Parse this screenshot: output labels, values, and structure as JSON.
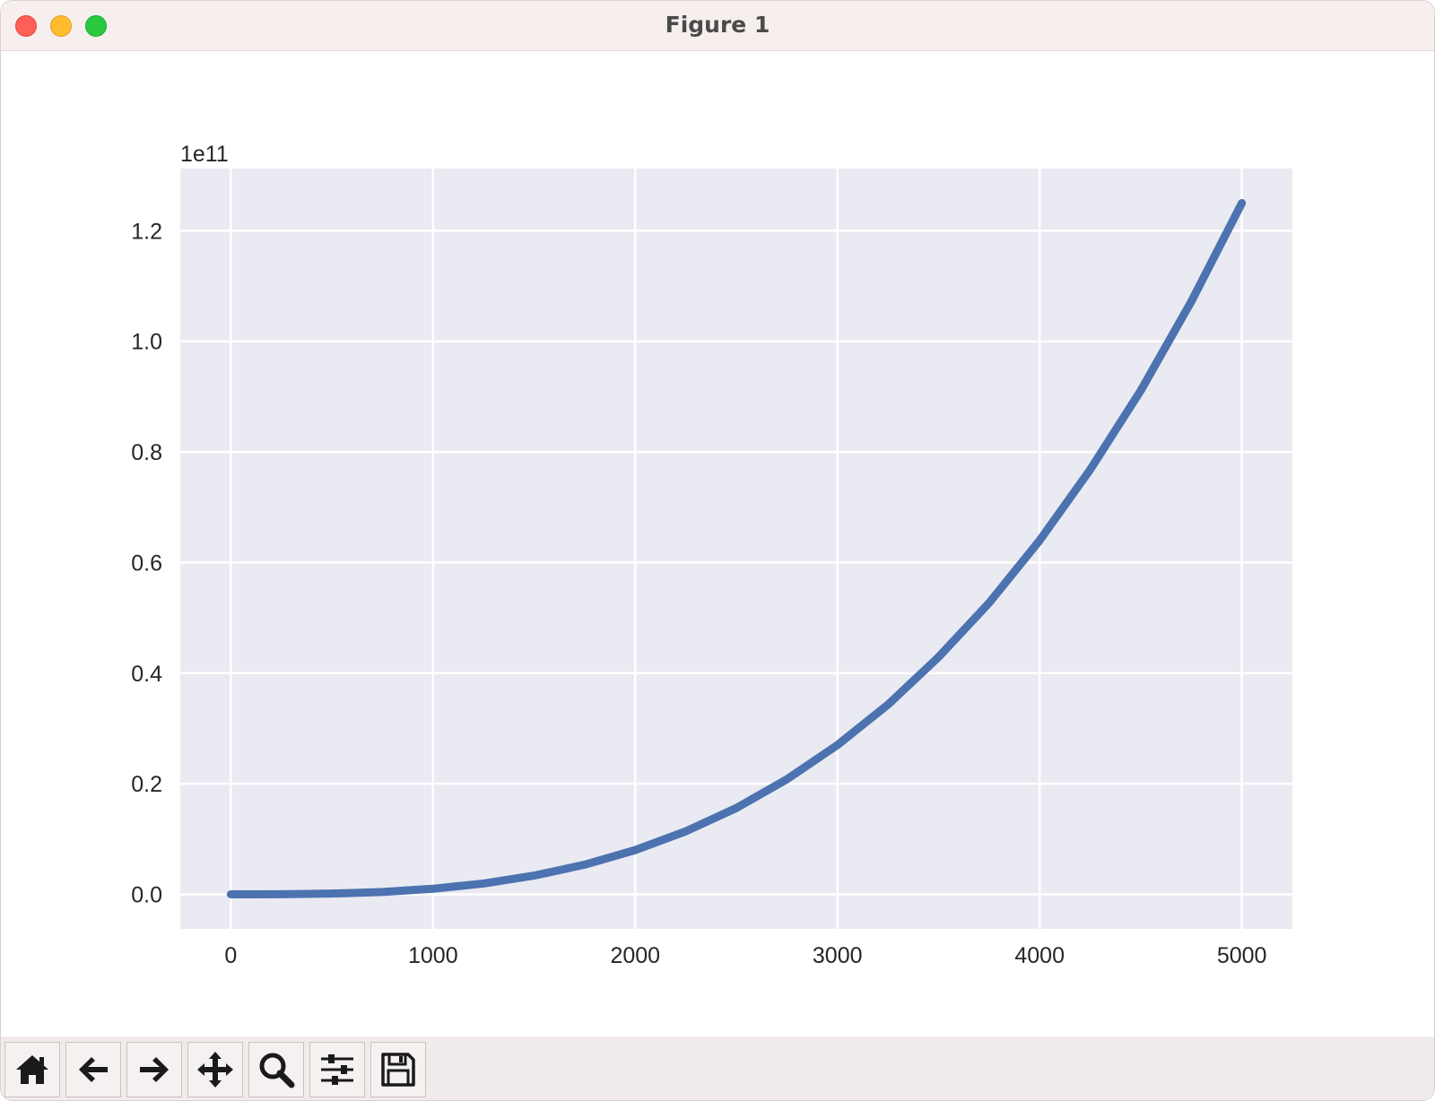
{
  "window": {
    "title": "Figure 1"
  },
  "toolbar": {
    "buttons": [
      {
        "name": "home-button",
        "icon": "home-icon"
      },
      {
        "name": "back-button",
        "icon": "arrow-left-icon"
      },
      {
        "name": "forward-button",
        "icon": "arrow-right-icon"
      },
      {
        "name": "pan-button",
        "icon": "move-icon"
      },
      {
        "name": "zoom-button",
        "icon": "magnifier-icon"
      },
      {
        "name": "configure-subplots-button",
        "icon": "sliders-icon"
      },
      {
        "name": "save-button",
        "icon": "floppy-disk-icon"
      }
    ]
  },
  "chart_data": {
    "type": "line",
    "title": "",
    "xlabel": "",
    "ylabel": "",
    "y_offset_label": "1e11",
    "y_scale": 100000000000,
    "xlim": [
      -250,
      5250
    ],
    "ylim": [
      -0.0625,
      1.3125
    ],
    "x_ticks": [
      0,
      1000,
      2000,
      3000,
      4000,
      5000
    ],
    "x_tick_labels": [
      "0",
      "1000",
      "2000",
      "3000",
      "4000",
      "5000"
    ],
    "y_ticks": [
      0.0,
      0.2,
      0.4,
      0.6,
      0.8,
      1.0,
      1.2
    ],
    "y_tick_labels": [
      "0.0",
      "0.2",
      "0.4",
      "0.6",
      "0.8",
      "1.0",
      "1.2"
    ],
    "grid": true,
    "colors": {
      "line": "#4c72b0",
      "axes_background": "#eaeaf2",
      "grid": "#ffffff",
      "tick_label": "#262626"
    },
    "series": [
      {
        "x": [
          0,
          250,
          500,
          750,
          1000,
          1250,
          1500,
          1750,
          2000,
          2250,
          2500,
          2750,
          3000,
          3250,
          3500,
          3750,
          4000,
          4250,
          4500,
          4750,
          5000
        ],
        "y": [
          0.0,
          0.00016,
          0.00125,
          0.0042,
          0.01,
          0.0195,
          0.0338,
          0.0536,
          0.08,
          0.1139,
          0.156,
          0.208,
          0.27,
          0.343,
          0.429,
          0.527,
          0.64,
          0.768,
          0.911,
          1.072,
          1.25
        ]
      }
    ]
  }
}
